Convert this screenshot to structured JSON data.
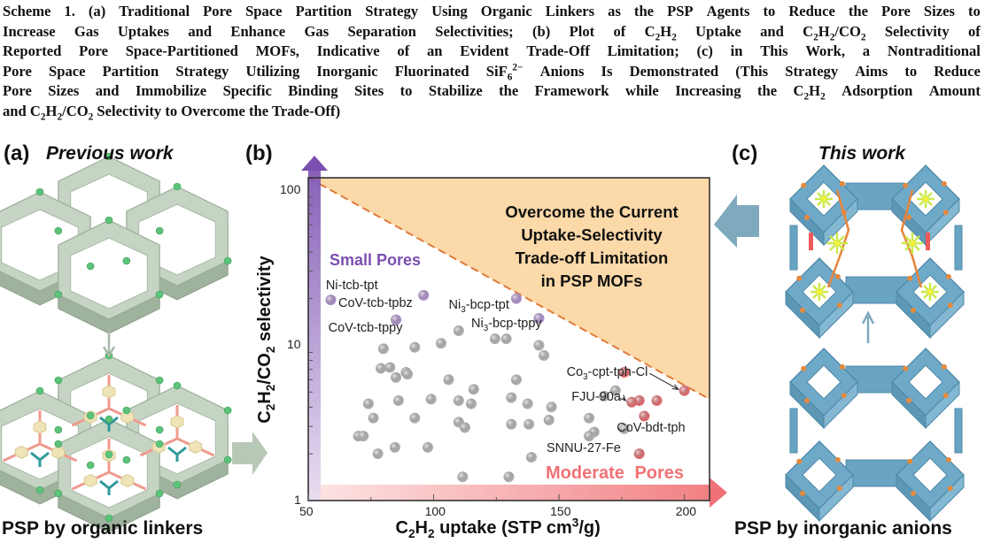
{
  "caption": {
    "lines": [
      [
        {
          "t": "Scheme 1. (a) Traditional Pore Space Partition Strategy Using Organic Linkers as the PSP Agents to Reduce the Pore Sizes to"
        }
      ],
      [
        {
          "t": "Increase Gas Uptakes and Enhance Gas Separation Selectivities; (b) Plot of C"
        },
        {
          "sub": "2"
        },
        {
          "t": "H"
        },
        {
          "sub": "2"
        },
        {
          "t": " Uptake and C"
        },
        {
          "sub": "2"
        },
        {
          "t": "H"
        },
        {
          "sub": "2"
        },
        {
          "t": "/CO"
        },
        {
          "sub": "2"
        },
        {
          "t": " Selectivity of"
        }
      ],
      [
        {
          "t": "Reported Pore Space-Partitioned MOFs, Indicative of an Evident Trade-Off Limitation; (c) in This Work, a Nontraditional"
        }
      ],
      [
        {
          "t": "Pore Space Partition Strategy Utilizing Inorganic Fluorinated SiF"
        },
        {
          "sub": "6"
        },
        {
          "sup": "2−"
        },
        {
          "t": " Anions Is Demonstrated (This Strategy Aims to Reduce"
        }
      ],
      [
        {
          "t": "Pore Sizes and Immobilize Specific Binding Sites to Stabilize the Framework while Increasing the C"
        },
        {
          "sub": "2"
        },
        {
          "t": "H"
        },
        {
          "sub": "2"
        },
        {
          "t": " Adsorption Amount"
        }
      ],
      [
        {
          "t": "and C"
        },
        {
          "sub": "2"
        },
        {
          "t": "H"
        },
        {
          "sub": "2"
        },
        {
          "t": "/CO"
        },
        {
          "sub": "2"
        },
        {
          "t": " Selectivity to Overcome the Trade-Off)"
        }
      ]
    ]
  },
  "panel_a": {
    "letter": "(a)",
    "title": "Previous work",
    "bottom_label": "PSP by organic linkers"
  },
  "panel_b": {
    "letter": "(b)"
  },
  "panel_c": {
    "letter": "(c)",
    "title": "This work",
    "bottom_label": "PSP by inorganic anions"
  },
  "colors": {
    "purple": "#7a4fb0",
    "red": "#f07276",
    "orange_fill": "#fbd9a8",
    "dash": "#e07a3a",
    "framework_a": "#c6d4c4",
    "framework_c": "#6fa9c8",
    "arrow_a": "#b8c8b6",
    "arrow_c": "#7fa9bd"
  },
  "chart_data": {
    "type": "scatter",
    "xlabel": [
      {
        "t": "C"
      },
      {
        "sub": "2"
      },
      {
        "t": "H"
      },
      {
        "sub": "2"
      },
      {
        "t": " uptake (STP cm"
      },
      {
        "sup": "3"
      },
      {
        "t": "/g)"
      }
    ],
    "ylabel": [
      {
        "t": "C"
      },
      {
        "sub": "2"
      },
      {
        "t": "H"
      },
      {
        "sub": "2"
      },
      {
        "t": "/CO"
      },
      {
        "sub": "2"
      },
      {
        "t": " selectivity"
      }
    ],
    "xlim": [
      50,
      210
    ],
    "ylim": [
      1,
      120
    ],
    "yscale": "log",
    "xticks": [
      "50",
      "100",
      "150",
      "200"
    ],
    "yticks": [
      "1",
      "10",
      "100"
    ],
    "region_text": [
      "Overcome the Current",
      "Uptake-Selectivity",
      "Trade-off Limitation",
      "in PSP MOFs"
    ],
    "small_pores_label": "Small Pores",
    "moderate_pores_label": "Moderate Pores",
    "tradeoff_line": [
      [
        50,
        120
      ],
      [
        210,
        4.5
      ]
    ],
    "series": [
      {
        "name": "small-pore PSP MOFs",
        "color": "#b89ad8",
        "points": [
          [
            59,
            19.6
          ],
          [
            96,
            21
          ],
          [
            85,
            14.6
          ],
          [
            133,
            20
          ],
          [
            142,
            14.9
          ]
        ]
      },
      {
        "name": "moderate-pore PSP MOFs",
        "color": "#f07276",
        "points": [
          [
            176,
            6.7
          ],
          [
            200,
            5.1
          ],
          [
            182,
            4.4
          ],
          [
            179,
            4.3
          ],
          [
            189,
            4.4
          ],
          [
            184,
            3.5
          ],
          [
            182,
            2.0
          ]
        ]
      },
      {
        "name": "other reported PSP MOFs",
        "color": "#bdbdbd",
        "points": [
          [
            110,
            12.4
          ],
          [
            103,
            10.3
          ],
          [
            124.5,
            11
          ],
          [
            129,
            11
          ],
          [
            142,
            10
          ],
          [
            144,
            8.6
          ],
          [
            80,
            9.5
          ],
          [
            92.5,
            9.7
          ],
          [
            79,
            7.1
          ],
          [
            82.6,
            7.2
          ],
          [
            85,
            6.2
          ],
          [
            89,
            6.7
          ],
          [
            89.6,
            6.5
          ],
          [
            106,
            6.0
          ],
          [
            133,
            6.0
          ],
          [
            116,
            5.2
          ],
          [
            131,
            4.6
          ],
          [
            110,
            4.4
          ],
          [
            115,
            4.2
          ],
          [
            99,
            4.5
          ],
          [
            86,
            4.4
          ],
          [
            74,
            4.2
          ],
          [
            137.5,
            4.2
          ],
          [
            147,
            4.0
          ],
          [
            168,
            4.7
          ],
          [
            172.5,
            5.1
          ],
          [
            76,
            3.4
          ],
          [
            92.5,
            3.4
          ],
          [
            162,
            3.4
          ],
          [
            146,
            3.3
          ],
          [
            110,
            3.2
          ],
          [
            112.5,
            2.95
          ],
          [
            131,
            3.1
          ],
          [
            138,
            3.1
          ],
          [
            176,
            2.9
          ],
          [
            164,
            2.76
          ],
          [
            162,
            2.6
          ],
          [
            70,
            2.6
          ],
          [
            72,
            2.6
          ],
          [
            84.6,
            2.2
          ],
          [
            97.7,
            2.2
          ],
          [
            77.8,
            2.0
          ],
          [
            139,
            1.9
          ],
          [
            111.6,
            1.42
          ],
          [
            130,
            1.42
          ]
        ]
      }
    ],
    "point_labels": [
      {
        "runs": [
          {
            "t": "Ni-tcb-tpt"
          }
        ],
        "at": [
          57,
          24
        ]
      },
      {
        "runs": [
          {
            "t": "CoV-tcb-tpbz"
          }
        ],
        "at": [
          62,
          18.5
        ]
      },
      {
        "runs": [
          {
            "t": "CoV-tcb-tppy"
          }
        ],
        "at": [
          58,
          12.8
        ]
      },
      {
        "runs": [
          {
            "t": "Ni"
          },
          {
            "sub": "3"
          },
          {
            "t": "-bcp-tpt"
          }
        ],
        "at": [
          106,
          18
        ]
      },
      {
        "runs": [
          {
            "t": "Ni"
          },
          {
            "sub": "3"
          },
          {
            "t": "-bcp-tppy"
          }
        ],
        "at": [
          115,
          13.6
        ]
      },
      {
        "runs": [
          {
            "t": "Co"
          },
          {
            "sub": "3"
          },
          {
            "t": "-cpt-tph-Cl"
          }
        ],
        "at": [
          153,
          6.6
        ],
        "arrow_to": [
          199,
          5.2
        ]
      },
      {
        "runs": [
          {
            "t": "FJU-90a"
          }
        ],
        "at": [
          155,
          4.6
        ],
        "arrow_to": [
          178,
          4.4
        ]
      },
      {
        "runs": [
          {
            "t": "CoV-bdt-tph"
          }
        ],
        "at": [
          173,
          2.9
        ]
      },
      {
        "runs": [
          {
            "t": "SNNU-27-Fe"
          }
        ],
        "at": [
          145,
          2.15
        ]
      }
    ]
  }
}
